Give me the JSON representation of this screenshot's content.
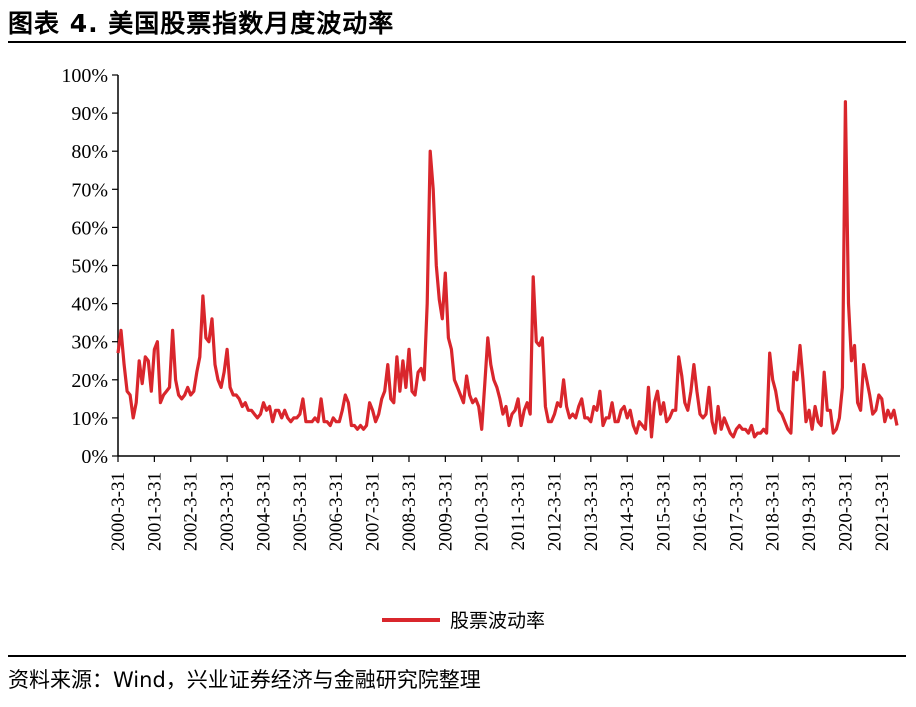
{
  "header": {
    "title": "图表 4. 美国股票指数月度波动率"
  },
  "footer": {
    "source": "资料来源：Wind，兴业证券经济与金融研究院整理"
  },
  "colors": {
    "series": "#d9262c",
    "axis": "#000000"
  },
  "chart_data": {
    "type": "line",
    "ylim": [
      0,
      100
    ],
    "yticks": [
      "0%",
      "10%",
      "20%",
      "30%",
      "40%",
      "50%",
      "60%",
      "70%",
      "80%",
      "90%",
      "100%"
    ],
    "xticks": [
      "2000-3-31",
      "2001-3-31",
      "2002-3-31",
      "2003-3-31",
      "2004-3-31",
      "2005-3-31",
      "2006-3-31",
      "2007-3-31",
      "2008-3-31",
      "2009-3-31",
      "2010-3-31",
      "2011-3-31",
      "2012-3-31",
      "2013-3-31",
      "2014-3-31",
      "2015-3-31",
      "2016-3-31",
      "2017-3-31",
      "2018-3-31",
      "2019-3-31",
      "2020-3-31",
      "2021-3-31"
    ],
    "grid": false,
    "legend": "bottom",
    "series": [
      {
        "name": "股票波动率",
        "points": [
          [
            "2000-03",
            27
          ],
          [
            "2000-04",
            33
          ],
          [
            "2000-05",
            24
          ],
          [
            "2000-06",
            17
          ],
          [
            "2000-07",
            16
          ],
          [
            "2000-08",
            10
          ],
          [
            "2000-09",
            14
          ],
          [
            "2000-10",
            25
          ],
          [
            "2000-11",
            19
          ],
          [
            "2000-12",
            26
          ],
          [
            "2001-01",
            25
          ],
          [
            "2001-02",
            17
          ],
          [
            "2001-03",
            28
          ],
          [
            "2001-04",
            30
          ],
          [
            "2001-05",
            14
          ],
          [
            "2001-06",
            16
          ],
          [
            "2001-07",
            17
          ],
          [
            "2001-08",
            18
          ],
          [
            "2001-09",
            33
          ],
          [
            "2001-10",
            20
          ],
          [
            "2001-11",
            16
          ],
          [
            "2001-12",
            15
          ],
          [
            "2002-01",
            16
          ],
          [
            "2002-02",
            18
          ],
          [
            "2002-03",
            16
          ],
          [
            "2002-04",
            17
          ],
          [
            "2002-05",
            22
          ],
          [
            "2002-06",
            26
          ],
          [
            "2002-07",
            42
          ],
          [
            "2002-08",
            31
          ],
          [
            "2002-09",
            30
          ],
          [
            "2002-10",
            36
          ],
          [
            "2002-11",
            24
          ],
          [
            "2002-12",
            20
          ],
          [
            "2003-01",
            18
          ],
          [
            "2003-02",
            22
          ],
          [
            "2003-03",
            28
          ],
          [
            "2003-04",
            18
          ],
          [
            "2003-05",
            16
          ],
          [
            "2003-06",
            16
          ],
          [
            "2003-07",
            15
          ],
          [
            "2003-08",
            13
          ],
          [
            "2003-09",
            14
          ],
          [
            "2003-10",
            12
          ],
          [
            "2003-11",
            12
          ],
          [
            "2003-12",
            11
          ],
          [
            "2004-01",
            10
          ],
          [
            "2004-02",
            11
          ],
          [
            "2004-03",
            14
          ],
          [
            "2004-04",
            12
          ],
          [
            "2004-05",
            13
          ],
          [
            "2004-06",
            9
          ],
          [
            "2004-07",
            12
          ],
          [
            "2004-08",
            12
          ],
          [
            "2004-09",
            10
          ],
          [
            "2004-10",
            12
          ],
          [
            "2004-11",
            10
          ],
          [
            "2004-12",
            9
          ],
          [
            "2005-01",
            10
          ],
          [
            "2005-02",
            10
          ],
          [
            "2005-03",
            11
          ],
          [
            "2005-04",
            15
          ],
          [
            "2005-05",
            9
          ],
          [
            "2005-06",
            9
          ],
          [
            "2005-07",
            9
          ],
          [
            "2005-08",
            10
          ],
          [
            "2005-09",
            9
          ],
          [
            "2005-10",
            15
          ],
          [
            "2005-11",
            9
          ],
          [
            "2005-12",
            9
          ],
          [
            "2006-01",
            8
          ],
          [
            "2006-02",
            10
          ],
          [
            "2006-03",
            9
          ],
          [
            "2006-04",
            9
          ],
          [
            "2006-05",
            12
          ],
          [
            "2006-06",
            16
          ],
          [
            "2006-07",
            14
          ],
          [
            "2006-08",
            8
          ],
          [
            "2006-09",
            8
          ],
          [
            "2006-10",
            7
          ],
          [
            "2006-11",
            8
          ],
          [
            "2006-12",
            7
          ],
          [
            "2007-01",
            8
          ],
          [
            "2007-02",
            14
          ],
          [
            "2007-03",
            12
          ],
          [
            "2007-04",
            9
          ],
          [
            "2007-05",
            11
          ],
          [
            "2007-06",
            15
          ],
          [
            "2007-07",
            17
          ],
          [
            "2007-08",
            24
          ],
          [
            "2007-09",
            15
          ],
          [
            "2007-10",
            14
          ],
          [
            "2007-11",
            26
          ],
          [
            "2007-12",
            17
          ],
          [
            "2008-01",
            25
          ],
          [
            "2008-02",
            18
          ],
          [
            "2008-03",
            28
          ],
          [
            "2008-04",
            17
          ],
          [
            "2008-05",
            16
          ],
          [
            "2008-06",
            22
          ],
          [
            "2008-07",
            23
          ],
          [
            "2008-08",
            20
          ],
          [
            "2008-09",
            40
          ],
          [
            "2008-10",
            80
          ],
          [
            "2008-11",
            70
          ],
          [
            "2008-12",
            50
          ],
          [
            "2009-01",
            41
          ],
          [
            "2009-02",
            36
          ],
          [
            "2009-03",
            48
          ],
          [
            "2009-04",
            31
          ],
          [
            "2009-05",
            28
          ],
          [
            "2009-06",
            20
          ],
          [
            "2009-07",
            18
          ],
          [
            "2009-08",
            16
          ],
          [
            "2009-09",
            14
          ],
          [
            "2009-10",
            21
          ],
          [
            "2009-11",
            16
          ],
          [
            "2009-12",
            14
          ],
          [
            "2010-01",
            15
          ],
          [
            "2010-02",
            13
          ],
          [
            "2010-03",
            7
          ],
          [
            "2010-04",
            19
          ],
          [
            "2010-05",
            31
          ],
          [
            "2010-06",
            24
          ],
          [
            "2010-07",
            20
          ],
          [
            "2010-08",
            18
          ],
          [
            "2010-09",
            15
          ],
          [
            "2010-10",
            11
          ],
          [
            "2010-11",
            13
          ],
          [
            "2010-12",
            8
          ],
          [
            "2011-01",
            11
          ],
          [
            "2011-02",
            12
          ],
          [
            "2011-03",
            15
          ],
          [
            "2011-04",
            8
          ],
          [
            "2011-05",
            12
          ],
          [
            "2011-06",
            14
          ],
          [
            "2011-07",
            11
          ],
          [
            "2011-08",
            47
          ],
          [
            "2011-09",
            30
          ],
          [
            "2011-10",
            29
          ],
          [
            "2011-11",
            31
          ],
          [
            "2011-12",
            13
          ],
          [
            "2012-01",
            9
          ],
          [
            "2012-02",
            9
          ],
          [
            "2012-03",
            11
          ],
          [
            "2012-04",
            14
          ],
          [
            "2012-05",
            13
          ],
          [
            "2012-06",
            20
          ],
          [
            "2012-07",
            13
          ],
          [
            "2012-08",
            10
          ],
          [
            "2012-09",
            11
          ],
          [
            "2012-10",
            10
          ],
          [
            "2012-11",
            13
          ],
          [
            "2012-12",
            15
          ],
          [
            "2013-01",
            10
          ],
          [
            "2013-02",
            10
          ],
          [
            "2013-03",
            9
          ],
          [
            "2013-04",
            13
          ],
          [
            "2013-05",
            12
          ],
          [
            "2013-06",
            17
          ],
          [
            "2013-07",
            8
          ],
          [
            "2013-08",
            10
          ],
          [
            "2013-09",
            10
          ],
          [
            "2013-10",
            14
          ],
          [
            "2013-11",
            9
          ],
          [
            "2013-12",
            9
          ],
          [
            "2014-01",
            12
          ],
          [
            "2014-02",
            13
          ],
          [
            "2014-03",
            10
          ],
          [
            "2014-04",
            12
          ],
          [
            "2014-05",
            8
          ],
          [
            "2014-06",
            6
          ],
          [
            "2014-07",
            9
          ],
          [
            "2014-08",
            8
          ],
          [
            "2014-09",
            7
          ],
          [
            "2014-10",
            18
          ],
          [
            "2014-11",
            5
          ],
          [
            "2014-12",
            14
          ],
          [
            "2015-01",
            17
          ],
          [
            "2015-02",
            11
          ],
          [
            "2015-03",
            14
          ],
          [
            "2015-04",
            9
          ],
          [
            "2015-05",
            10
          ],
          [
            "2015-06",
            12
          ],
          [
            "2015-07",
            12
          ],
          [
            "2015-08",
            26
          ],
          [
            "2015-09",
            21
          ],
          [
            "2015-10",
            14
          ],
          [
            "2015-11",
            12
          ],
          [
            "2015-12",
            17
          ],
          [
            "2016-01",
            24
          ],
          [
            "2016-02",
            17
          ],
          [
            "2016-03",
            11
          ],
          [
            "2016-04",
            10
          ],
          [
            "2016-05",
            11
          ],
          [
            "2016-06",
            18
          ],
          [
            "2016-07",
            9
          ],
          [
            "2016-08",
            6
          ],
          [
            "2016-09",
            13
          ],
          [
            "2016-10",
            7
          ],
          [
            "2016-11",
            10
          ],
          [
            "2016-12",
            8
          ],
          [
            "2017-01",
            6
          ],
          [
            "2017-02",
            5
          ],
          [
            "2017-03",
            7
          ],
          [
            "2017-04",
            8
          ],
          [
            "2017-05",
            7
          ],
          [
            "2017-06",
            7
          ],
          [
            "2017-07",
            6
          ],
          [
            "2017-08",
            8
          ],
          [
            "2017-09",
            5
          ],
          [
            "2017-10",
            6
          ],
          [
            "2017-11",
            6
          ],
          [
            "2017-12",
            7
          ],
          [
            "2018-01",
            6
          ],
          [
            "2018-02",
            27
          ],
          [
            "2018-03",
            20
          ],
          [
            "2018-04",
            17
          ],
          [
            "2018-05",
            12
          ],
          [
            "2018-06",
            11
          ],
          [
            "2018-07",
            9
          ],
          [
            "2018-08",
            7
          ],
          [
            "2018-09",
            6
          ],
          [
            "2018-10",
            22
          ],
          [
            "2018-11",
            20
          ],
          [
            "2018-12",
            29
          ],
          [
            "2019-01",
            20
          ],
          [
            "2019-02",
            9
          ],
          [
            "2019-03",
            12
          ],
          [
            "2019-04",
            7
          ],
          [
            "2019-05",
            13
          ],
          [
            "2019-06",
            9
          ],
          [
            "2019-07",
            8
          ],
          [
            "2019-08",
            22
          ],
          [
            "2019-09",
            12
          ],
          [
            "2019-10",
            12
          ],
          [
            "2019-11",
            6
          ],
          [
            "2019-12",
            7
          ],
          [
            "2020-01",
            10
          ],
          [
            "2020-02",
            18
          ],
          [
            "2020-03",
            93
          ],
          [
            "2020-04",
            40
          ],
          [
            "2020-05",
            25
          ],
          [
            "2020-06",
            29
          ],
          [
            "2020-07",
            14
          ],
          [
            "2020-08",
            12
          ],
          [
            "2020-09",
            24
          ],
          [
            "2020-10",
            20
          ],
          [
            "2020-11",
            16
          ],
          [
            "2020-12",
            11
          ],
          [
            "2021-01",
            12
          ],
          [
            "2021-02",
            16
          ],
          [
            "2021-03",
            15
          ],
          [
            "2021-04",
            9
          ],
          [
            "2021-05",
            12
          ],
          [
            "2021-06",
            10
          ],
          [
            "2021-07",
            12
          ],
          [
            "2021-08",
            8
          ]
        ]
      }
    ]
  }
}
